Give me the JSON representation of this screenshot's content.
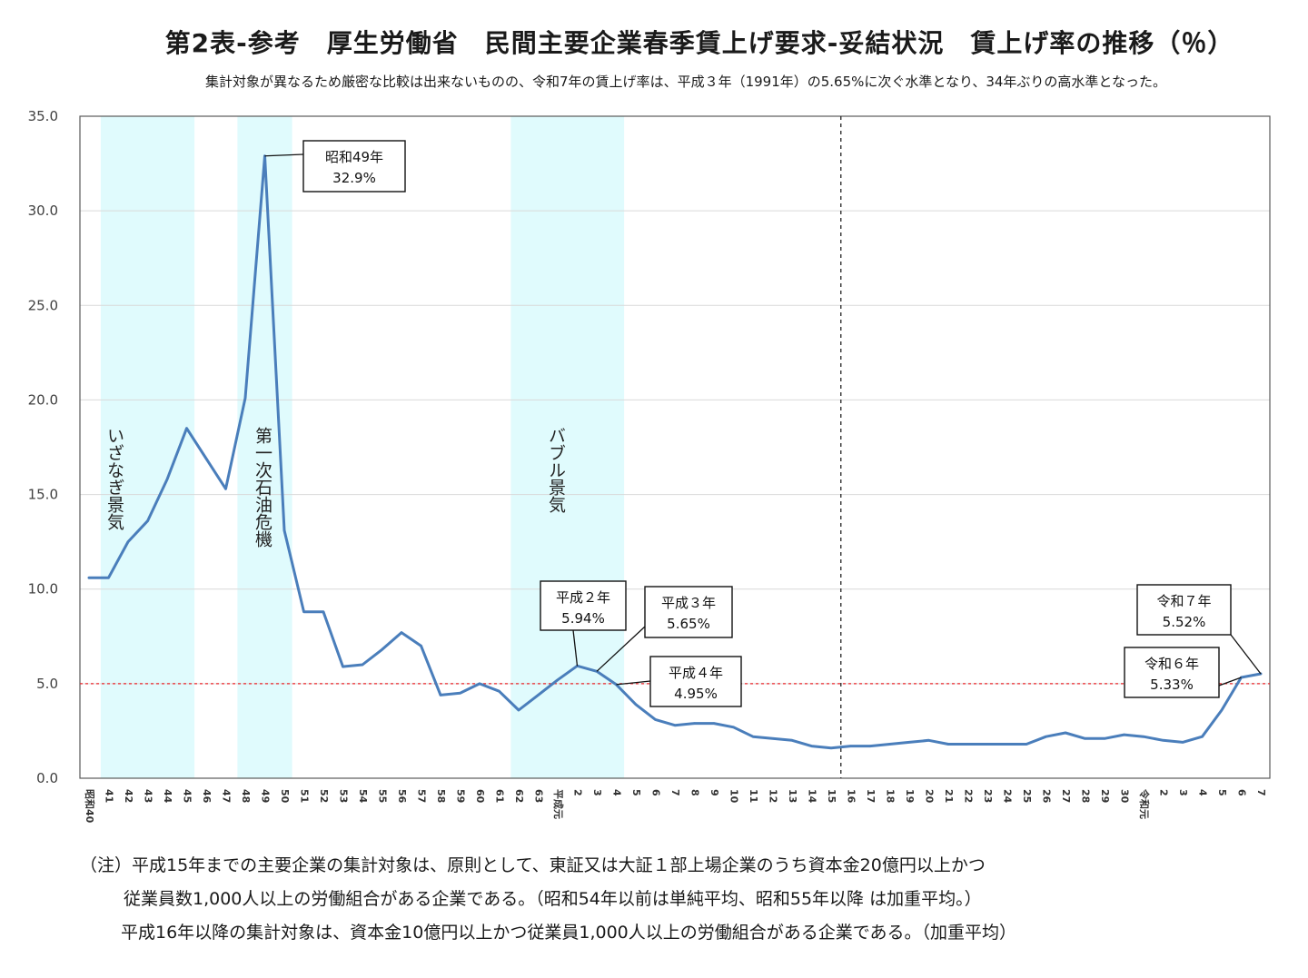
{
  "chart_data": {
    "type": "line",
    "title": "第2表‐参考　厚生労働省　民間主要企業春季賃上げ要求‐妥結状況　賃上げ率の推移（％）",
    "subtitle": "集計対象が異なるため厳密な比較は出来ないものの、令和7年の賃上げ率は、平成３年（1991年）の5.65%に次ぐ水準となり、34年ぶりの高水準となった。",
    "xlabel": "",
    "ylabel": "",
    "ylim": [
      0,
      35
    ],
    "yticks": [
      "0.0",
      "5.0",
      "10.0",
      "15.0",
      "20.0",
      "25.0",
      "30.0",
      "35.0"
    ],
    "grid": true,
    "color": "#4a7ebb",
    "categories": [
      "昭和40",
      "41",
      "42",
      "43",
      "44",
      "45",
      "46",
      "47",
      "48",
      "49",
      "50",
      "51",
      "52",
      "53",
      "54",
      "55",
      "56",
      "57",
      "58",
      "59",
      "60",
      "61",
      "62",
      "63",
      "平成元",
      "2",
      "3",
      "4",
      "5",
      "6",
      "7",
      "8",
      "9",
      "10",
      "11",
      "12",
      "13",
      "14",
      "15",
      "16",
      "17",
      "18",
      "19",
      "20",
      "21",
      "22",
      "23",
      "24",
      "25",
      "26",
      "27",
      "28",
      "29",
      "30",
      "令和元",
      "2",
      "3",
      "4",
      "5",
      "6",
      "7"
    ],
    "values": [
      10.6,
      10.6,
      12.5,
      13.6,
      15.8,
      18.5,
      16.9,
      15.3,
      20.1,
      32.9,
      13.1,
      8.8,
      8.8,
      5.9,
      6.0,
      6.8,
      7.7,
      7.0,
      4.4,
      4.5,
      5.0,
      4.6,
      3.6,
      4.4,
      5.2,
      5.94,
      5.65,
      4.95,
      3.9,
      3.1,
      2.8,
      2.9,
      2.9,
      2.7,
      2.2,
      2.1,
      2.0,
      1.7,
      1.6,
      1.7,
      1.7,
      1.8,
      1.9,
      2.0,
      1.8,
      1.8,
      1.8,
      1.8,
      1.8,
      2.2,
      2.4,
      2.1,
      2.1,
      2.3,
      2.2,
      2.0,
      1.9,
      2.2,
      3.6,
      5.33,
      5.52
    ],
    "reference_line": {
      "y": 5.0,
      "style": "dashed",
      "color": "#e8262b"
    },
    "divider_after_category": "15",
    "shaded_periods": [
      {
        "label": "いざなぎ景気",
        "from": "41",
        "to": "45"
      },
      {
        "label": "第一次石油危機",
        "from": "48",
        "to": "50"
      },
      {
        "label": "バブル景気",
        "from": "62",
        "to": "4"
      }
    ],
    "shade_color": "#e0fbfd",
    "annotations": [
      {
        "line1": "昭和49年",
        "line2": "32.9%",
        "category_index": 9
      },
      {
        "line1": "平成２年",
        "line2": "5.94%",
        "category_index": 25
      },
      {
        "line1": "平成３年",
        "line2": "5.65%",
        "category_index": 26
      },
      {
        "line1": "平成４年",
        "line2": "4.95%",
        "category_index": 27
      },
      {
        "line1": "令和７年",
        "line2": "5.52%",
        "category_index": 60
      },
      {
        "line1": "令和６年",
        "line2": "5.33%",
        "category_index": 59
      }
    ]
  },
  "notes": [
    "（注）平成15年までの主要企業の集計対象は、原則として、東証又は大証１部上場企業のうち資本金20億円以上かつ",
    "従業員数1,000人以上の労働組合がある企業である。（昭和54年以前は単純平均、昭和55年以降 は加重平均。）",
    "平成16年以降の集計対象は、資本金10億円以上かつ従業員1,000人以上の労働組合がある企業である。（加重平均）"
  ]
}
